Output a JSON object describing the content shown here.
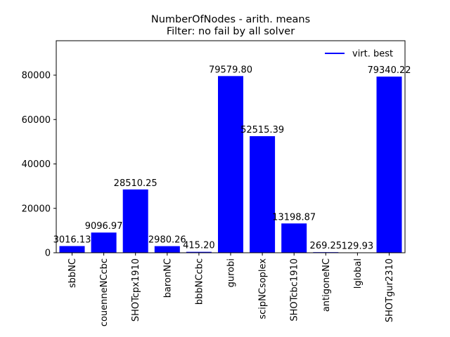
{
  "chart_data": {
    "type": "bar",
    "title": "NumberOfNodes - arith. means",
    "subtitle": "Filter: no fail by all solver",
    "xlabel": "",
    "ylabel": "",
    "categories": [
      "sbbNC",
      "couenneNCcbc",
      "SHOTcpx1910",
      "baronNC",
      "bbbNCcbc",
      "gurobi",
      "scipNCsoplex",
      "SHOTcbc1910",
      "antigoneNC",
      "lglobal",
      "SHOTgur2310"
    ],
    "series": [
      {
        "name": "virt. best",
        "values": [
          3016.13,
          9096.97,
          28510.25,
          2980.26,
          415.2,
          79579.8,
          52515.39,
          13198.87,
          269.25,
          129.93,
          79340.22
        ],
        "labels": [
          "3016.13",
          "9096.97",
          "28510.25",
          "2980.26",
          "415.20",
          "79579.80",
          "52515.39",
          "13198.87",
          "269.25",
          "129.93",
          "79340.22"
        ],
        "color": "#0000ff"
      }
    ],
    "yticks": [
      0,
      20000,
      40000,
      60000,
      80000
    ],
    "ytick_labels": [
      "0",
      "20000",
      "40000",
      "60000",
      "80000"
    ],
    "ylim": [
      0,
      95500
    ],
    "grid": false,
    "legend_position": "top-right"
  }
}
